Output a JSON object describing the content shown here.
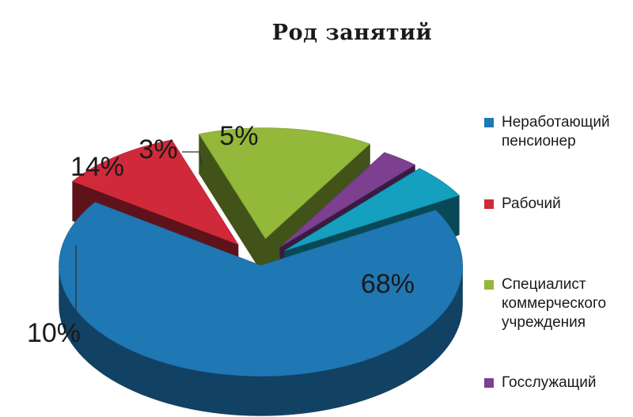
{
  "chart_data": {
    "type": "pie",
    "title": "Род занятий",
    "categories": [
      "Неработающий пенсионер",
      "Рабочий",
      "Специалист коммерческого учреждения",
      "Госслужащий",
      ""
    ],
    "values": [
      68,
      10,
      14,
      3,
      5
    ],
    "labels": [
      "68%",
      "10%",
      "14%",
      "3%",
      "5%"
    ],
    "colors": [
      "#1f77b4",
      "#d02a3a",
      "#93b83a",
      "#7d3f8f",
      "#14a0be"
    ],
    "legend_lines": [
      [
        "Неработающий",
        "пенсионер"
      ],
      [
        "Рабочий"
      ],
      [
        "Специалист",
        "коммерческого",
        "учреждения"
      ],
      [
        "Госслужащий"
      ]
    ],
    "legend_placement": "right",
    "exploded": true,
    "three_d": true
  }
}
